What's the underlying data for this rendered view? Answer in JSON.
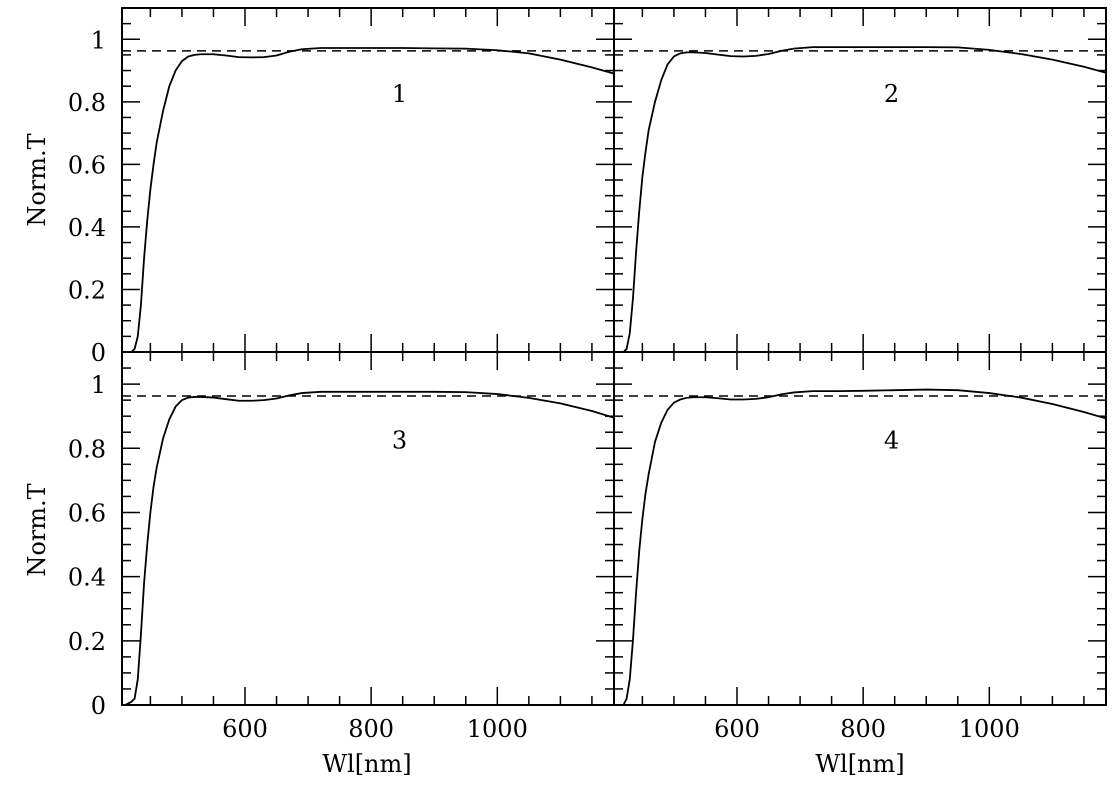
{
  "chart_data": {
    "type": "line",
    "layout": "2x2 panels, shared axes",
    "xlabel": "Wl[nm]",
    "ylabel": "Norm.T",
    "xlim": [
      405,
      1185
    ],
    "ylim": [
      0,
      1.1
    ],
    "x_ticks": [
      600,
      800,
      1000
    ],
    "y_ticks": [
      0,
      0.2,
      0.4,
      0.6,
      0.8,
      1
    ],
    "y_tick_labels": [
      "0",
      "0.2",
      "0.4",
      "0.6",
      "0.8",
      "1"
    ],
    "x_tick_labels": [
      "600",
      "800",
      "1000"
    ],
    "reference_line": {
      "style": "dashed",
      "y": 0.963
    },
    "panels": [
      {
        "label": "1",
        "x": [
          410,
          420,
          425,
          430,
          435,
          440,
          445,
          450,
          455,
          460,
          470,
          480,
          490,
          500,
          510,
          520,
          530,
          550,
          570,
          590,
          610,
          630,
          650,
          670,
          690,
          720,
          760,
          800,
          850,
          900,
          950,
          1000,
          1050,
          1100,
          1150,
          1185
        ],
        "y": [
          0.0,
          0.0,
          0.01,
          0.05,
          0.15,
          0.3,
          0.42,
          0.52,
          0.6,
          0.67,
          0.77,
          0.85,
          0.9,
          0.93,
          0.945,
          0.95,
          0.952,
          0.952,
          0.948,
          0.943,
          0.942,
          0.943,
          0.948,
          0.96,
          0.968,
          0.972,
          0.972,
          0.972,
          0.972,
          0.971,
          0.97,
          0.965,
          0.955,
          0.935,
          0.91,
          0.89
        ]
      },
      {
        "label": "2",
        "x": [
          410,
          420,
          425,
          430,
          435,
          440,
          445,
          450,
          455,
          460,
          470,
          480,
          490,
          500,
          510,
          520,
          530,
          550,
          570,
          590,
          610,
          630,
          650,
          670,
          690,
          720,
          760,
          800,
          850,
          900,
          950,
          1000,
          1050,
          1100,
          1150,
          1185
        ],
        "y": [
          0.0,
          0.0,
          0.01,
          0.06,
          0.17,
          0.32,
          0.45,
          0.56,
          0.64,
          0.71,
          0.8,
          0.87,
          0.92,
          0.945,
          0.955,
          0.958,
          0.958,
          0.956,
          0.951,
          0.946,
          0.945,
          0.947,
          0.953,
          0.963,
          0.97,
          0.975,
          0.975,
          0.975,
          0.975,
          0.975,
          0.974,
          0.966,
          0.953,
          0.935,
          0.912,
          0.893
        ]
      },
      {
        "label": "3",
        "x": [
          410,
          420,
          425,
          430,
          435,
          440,
          445,
          450,
          455,
          460,
          470,
          480,
          490,
          500,
          510,
          520,
          530,
          550,
          570,
          590,
          610,
          630,
          650,
          670,
          690,
          720,
          760,
          800,
          850,
          900,
          950,
          1000,
          1050,
          1100,
          1150,
          1185
        ],
        "y": [
          0.0,
          0.01,
          0.02,
          0.08,
          0.22,
          0.38,
          0.5,
          0.6,
          0.68,
          0.74,
          0.83,
          0.89,
          0.93,
          0.95,
          0.958,
          0.96,
          0.96,
          0.958,
          0.953,
          0.948,
          0.948,
          0.95,
          0.955,
          0.965,
          0.972,
          0.976,
          0.976,
          0.976,
          0.976,
          0.976,
          0.975,
          0.969,
          0.957,
          0.94,
          0.916,
          0.895
        ]
      },
      {
        "label": "4",
        "x": [
          410,
          420,
          425,
          430,
          435,
          440,
          445,
          450,
          455,
          460,
          470,
          480,
          490,
          500,
          510,
          520,
          530,
          550,
          570,
          590,
          610,
          630,
          650,
          670,
          690,
          720,
          760,
          800,
          850,
          900,
          950,
          1000,
          1050,
          1100,
          1150,
          1185
        ],
        "y": [
          0.0,
          0.0,
          0.02,
          0.08,
          0.2,
          0.35,
          0.48,
          0.58,
          0.66,
          0.72,
          0.82,
          0.88,
          0.92,
          0.942,
          0.952,
          0.957,
          0.959,
          0.959,
          0.956,
          0.952,
          0.952,
          0.954,
          0.959,
          0.968,
          0.974,
          0.978,
          0.978,
          0.979,
          0.981,
          0.983,
          0.981,
          0.972,
          0.958,
          0.938,
          0.913,
          0.893
        ]
      }
    ]
  }
}
